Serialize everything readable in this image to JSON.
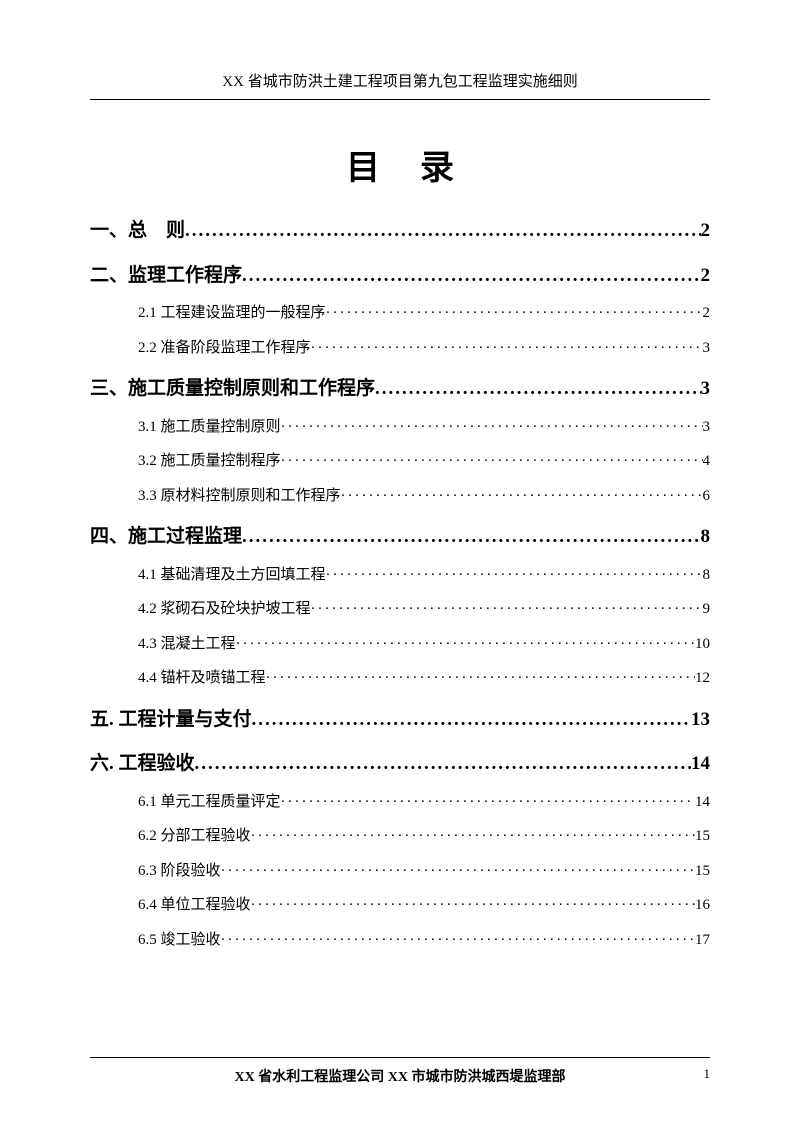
{
  "header": "XX 省城市防洪土建工程项目第九包工程监理实施细则",
  "title": "目录",
  "toc": [
    {
      "level": 1,
      "label": "一、总　则",
      "page": "2"
    },
    {
      "level": 1,
      "label": "二、监理工作程序",
      "page": "2"
    },
    {
      "level": 2,
      "label": "2.1 工程建设监理的一般程序",
      "page": "2"
    },
    {
      "level": 2,
      "label": "2.2 准备阶段监理工作程序",
      "page": "3"
    },
    {
      "level": 1,
      "label": "三、施工质量控制原则和工作程序",
      "page": "3"
    },
    {
      "level": 2,
      "label": "3.1 施工质量控制原则",
      "page": "3"
    },
    {
      "level": 2,
      "label": "3.2 施工质量控制程序",
      "page": "4"
    },
    {
      "level": 2,
      "label": "3.3 原材料控制原则和工作程序",
      "page": "6"
    },
    {
      "level": 1,
      "label": "四、施工过程监理",
      "page": "8"
    },
    {
      "level": 2,
      "label": "4.1 基础清理及土方回填工程",
      "page": "8"
    },
    {
      "level": 2,
      "label": "4.2 浆砌石及砼块护坡工程",
      "page": "9"
    },
    {
      "level": 2,
      "label": "4.3 混凝土工程",
      "page": "10"
    },
    {
      "level": 2,
      "label": "4.4 锚杆及喷锚工程",
      "page": "12"
    },
    {
      "level": 1,
      "label": "五. 工程计量与支付",
      "page": "13"
    },
    {
      "level": 1,
      "label": "六. 工程验收",
      "page": "14"
    },
    {
      "level": 2,
      "label": "6.1 单元工程质量评定",
      "page": "14"
    },
    {
      "level": 2,
      "label": "6.2 分部工程验收",
      "page": "15"
    },
    {
      "level": 2,
      "label": "6.3 阶段验收",
      "page": "15"
    },
    {
      "level": 2,
      "label": "6.4 单位工程验收",
      "page": "16"
    },
    {
      "level": 2,
      "label": "6.5 竣工验收",
      "page": "17"
    }
  ],
  "footer": "XX 省水利工程监理公司 XX 市城市防洪城西堤监理部",
  "page_number": "1",
  "leader_h1": "....................................................................................................",
  "leader_h2": "·······································································································································"
}
